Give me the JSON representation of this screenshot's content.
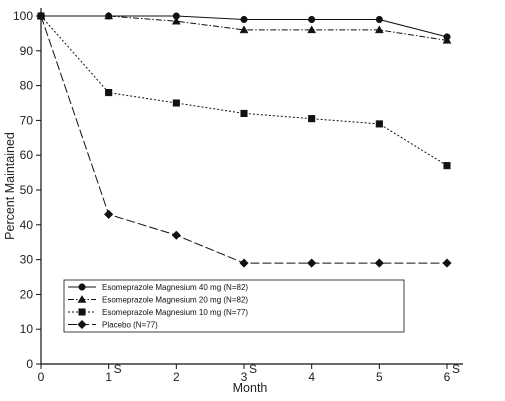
{
  "chart_data": {
    "type": "line",
    "xlabel": "Month",
    "ylabel": "Percent Maintained",
    "xlim": [
      0,
      6
    ],
    "ylim": [
      0,
      100
    ],
    "x_ticks": [
      {
        "value": 0,
        "label": "0",
        "suffix": ""
      },
      {
        "value": 1,
        "label": "1",
        "suffix": "S"
      },
      {
        "value": 2,
        "label": "2",
        "suffix": ""
      },
      {
        "value": 3,
        "label": "3",
        "suffix": "S"
      },
      {
        "value": 4,
        "label": "4",
        "suffix": ""
      },
      {
        "value": 5,
        "label": "5",
        "suffix": ""
      },
      {
        "value": 6,
        "label": "6",
        "suffix": "S"
      }
    ],
    "y_ticks": [
      0,
      10,
      20,
      30,
      40,
      50,
      60,
      70,
      80,
      90,
      100
    ],
    "grid": false,
    "legend_position": "bottom-left",
    "series": [
      {
        "name": "Esomeprazole Magnesium 40 mg (N=82)",
        "marker": "circle",
        "dash": "solid",
        "points": [
          [
            0,
            100
          ],
          [
            1,
            100
          ],
          [
            2,
            100
          ],
          [
            3,
            99
          ],
          [
            4,
            99
          ],
          [
            5,
            99
          ],
          [
            6,
            94
          ]
        ]
      },
      {
        "name": "Esomeprazole Magnesium 20 mg (N=82)",
        "marker": "triangle",
        "dash": "dashdot",
        "points": [
          [
            0,
            100
          ],
          [
            1,
            100
          ],
          [
            2,
            98.5
          ],
          [
            3,
            96
          ],
          [
            4,
            96
          ],
          [
            5,
            96
          ],
          [
            6,
            93
          ]
        ]
      },
      {
        "name": "Esomeprazole Magnesium 10 mg (N=77)",
        "marker": "square",
        "dash": "dotted",
        "points": [
          [
            0,
            100
          ],
          [
            1,
            78
          ],
          [
            2,
            75
          ],
          [
            3,
            72
          ],
          [
            4,
            70.5
          ],
          [
            5,
            69
          ],
          [
            6,
            57
          ]
        ]
      },
      {
        "name": "Placebo (N=77)",
        "marker": "diamond",
        "dash": "longdash",
        "points": [
          [
            0,
            100
          ],
          [
            1,
            43
          ],
          [
            2,
            37
          ],
          [
            3,
            29
          ],
          [
            4,
            29
          ],
          [
            5,
            29
          ],
          [
            6,
            29
          ]
        ]
      }
    ]
  }
}
